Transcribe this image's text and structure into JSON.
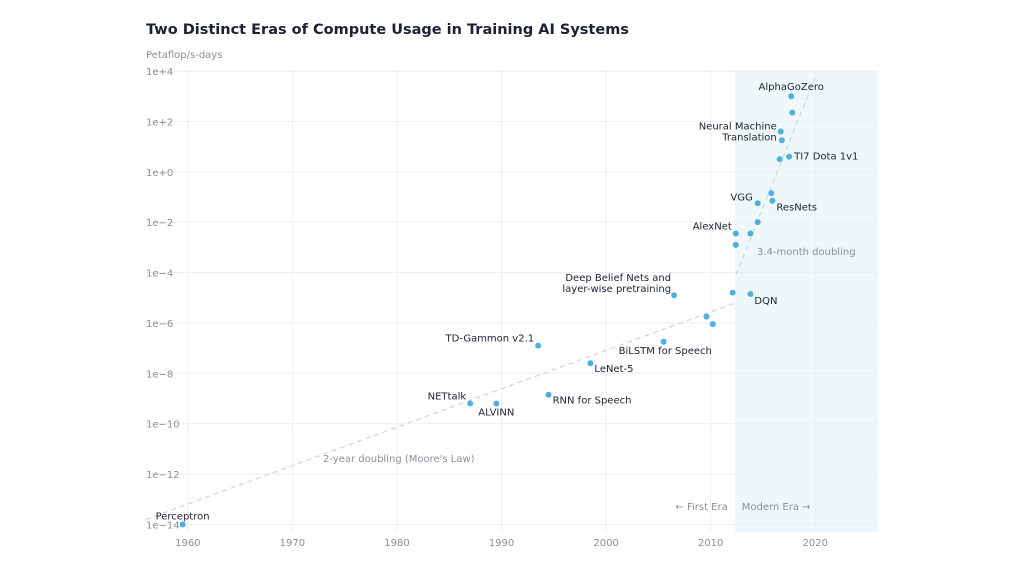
{
  "chart_data": {
    "type": "scatter",
    "title": "Two Distinct Eras of Compute Usage in Training AI Systems",
    "ylabel": "Petaflop/s-days",
    "xlabel": "",
    "y_scale": "log",
    "xlim": [
      1956,
      2026
    ],
    "ylim_exp": [
      -14.3,
      4
    ],
    "x_ticks": [
      1960,
      1970,
      1980,
      1990,
      2000,
      2010,
      2020
    ],
    "y_ticks": [
      {
        "exp": 4,
        "label": "1e+4"
      },
      {
        "exp": 2,
        "label": "1e+2"
      },
      {
        "exp": 0,
        "label": "1e+0"
      },
      {
        "exp": -2,
        "label": "1e−2"
      },
      {
        "exp": -4,
        "label": "1e−4"
      },
      {
        "exp": -6,
        "label": "1e−6"
      },
      {
        "exp": -8,
        "label": "1e−8"
      },
      {
        "exp": -10,
        "label": "1e−10"
      },
      {
        "exp": -12,
        "label": "1e−12"
      },
      {
        "exp": -14,
        "label": "1e−14"
      }
    ],
    "grid": true,
    "modern_era_start": 2012.3,
    "series": [
      {
        "color": "#4fb0e0",
        "points": [
          {
            "x": 1959.5,
            "y": -14.0,
            "label": "Perceptron"
          },
          {
            "x": 1987.0,
            "y": -9.2,
            "label": "NETtalk"
          },
          {
            "x": 1989.5,
            "y": -9.2,
            "label": "ALVINN"
          },
          {
            "x": 1993.5,
            "y": -6.9,
            "label": "TD-Gammon v2.1"
          },
          {
            "x": 1994.5,
            "y": -8.85,
            "label": "RNN for Speech"
          },
          {
            "x": 1998.5,
            "y": -7.6,
            "label": "LeNet-5"
          },
          {
            "x": 2005.5,
            "y": -6.75,
            "label": "BiLSTM for Speech"
          },
          {
            "x": 2006.5,
            "y": -4.9,
            "label": "Deep Belief Nets and layer-wise pretraining"
          },
          {
            "x": 2009.6,
            "y": -5.75,
            "label": ""
          },
          {
            "x": 2010.2,
            "y": -6.05,
            "label": ""
          },
          {
            "x": 2012.1,
            "y": -4.8,
            "label": ""
          },
          {
            "x": 2013.8,
            "y": -4.85,
            "label": "DQN"
          },
          {
            "x": 2012.4,
            "y": -2.9,
            "label": ""
          },
          {
            "x": 2012.4,
            "y": -2.45,
            "label": "AlexNet"
          },
          {
            "x": 2013.8,
            "y": -2.45,
            "label": ""
          },
          {
            "x": 2014.5,
            "y": -2.0,
            "label": ""
          },
          {
            "x": 2014.5,
            "y": -1.25,
            "label": "VGG"
          },
          {
            "x": 2015.8,
            "y": -0.85,
            "label": ""
          },
          {
            "x": 2015.9,
            "y": -1.15,
            "label": "ResNets"
          },
          {
            "x": 2016.6,
            "y": 0.5,
            "label": ""
          },
          {
            "x": 2016.7,
            "y": 1.6,
            "label": "Neural Machine Translation"
          },
          {
            "x": 2016.8,
            "y": 1.25,
            "label": ""
          },
          {
            "x": 2017.5,
            "y": 0.6,
            "label": "TI7 Dota 1v1"
          },
          {
            "x": 2017.8,
            "y": 2.35,
            "label": ""
          },
          {
            "x": 2017.7,
            "y": 3.0,
            "label": "AlphaGoZero"
          }
        ]
      }
    ],
    "trend_lines": [
      {
        "from": {
          "x": 1956,
          "y": -13.8
        },
        "to": {
          "x": 2012.4,
          "y": -5.2
        },
        "label": "2-year doubling (Moore's Law)"
      },
      {
        "from": {
          "x": 2012.4,
          "y": -4.1
        },
        "to": {
          "x": 2020,
          "y": 3.75
        },
        "label": "3.4-month doubling"
      }
    ],
    "annotations": {
      "first_era": "← First Era",
      "modern_era": "Modern Era →"
    }
  }
}
